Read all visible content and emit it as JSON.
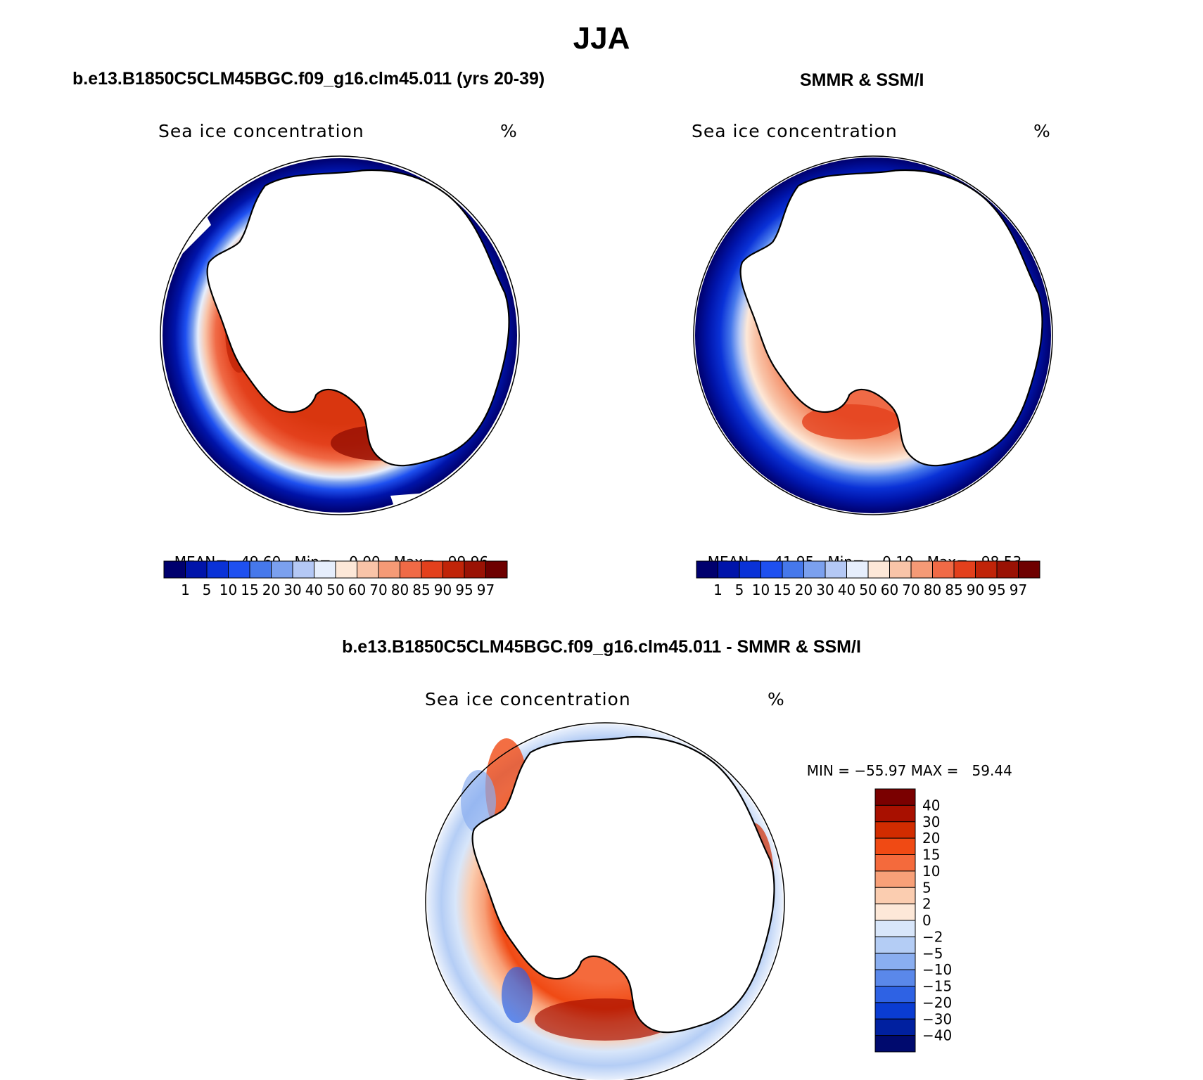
{
  "figure": {
    "title": "JJA",
    "left_case": "b.e13.B1850C5CLM45BGC.f09_g16.clm45.011 (yrs 20-39)",
    "right_case": "SMMR & SSM/I",
    "diff_case": "b.e13.B1850C5CLM45BGC.f09_g16.clm45.011 - SMMR & SSM/I"
  },
  "panels": {
    "model": {
      "variable": "Sea ice concentration",
      "units": "%",
      "stats": {
        "mean_label": "MEAN=",
        "mean": "49.60",
        "min_label": "Min=",
        "min": "0.00",
        "max_label": "Max=",
        "max": "99.96"
      }
    },
    "obs": {
      "variable": "Sea ice concentration",
      "units": "%",
      "stats": {
        "mean_label": "MEAN=",
        "mean": "41.95",
        "min_label": "Min=",
        "min": "0.10",
        "max_label": "Max=",
        "max": "98.53"
      }
    },
    "diff": {
      "variable": "Sea ice concentration",
      "units": "%",
      "stats": {
        "min_label": "MIN =",
        "min": "−55.97",
        "max_label": "MAX =",
        "max": "59.44"
      }
    }
  },
  "colorbars": {
    "concentration": {
      "labels": [
        "1",
        "5",
        "10",
        "15",
        "20",
        "30",
        "40",
        "50",
        "60",
        "70",
        "80",
        "85",
        "90",
        "95",
        "97"
      ],
      "colors": [
        "#00006e",
        "#0014aa",
        "#0a32d7",
        "#1e50f0",
        "#4678eb",
        "#7ba0ee",
        "#b4c8f5",
        "#e6eefc",
        "#fde8d8",
        "#f9c4a8",
        "#f59a76",
        "#f06a46",
        "#e3401c",
        "#c02408",
        "#9a1204",
        "#6e0000"
      ]
    },
    "difference": {
      "labels": [
        "40",
        "30",
        "20",
        "15",
        "10",
        "5",
        "2",
        "0",
        "−2",
        "−5",
        "−10",
        "−15",
        "−20",
        "−30",
        "−40"
      ],
      "colors": [
        "#7a0000",
        "#a81000",
        "#d22c00",
        "#f04a14",
        "#f46a3c",
        "#f8a078",
        "#fbcdb0",
        "#fde8d8",
        "#d8e6fa",
        "#b4cdf5",
        "#8aaef0",
        "#5a88ea",
        "#2e62e4",
        "#0a3cd2",
        "#0020a0",
        "#000a6e"
      ]
    }
  },
  "maps": {
    "land_color": "#ffffff",
    "coast_color": "#000000",
    "frame_color": "#000000"
  }
}
